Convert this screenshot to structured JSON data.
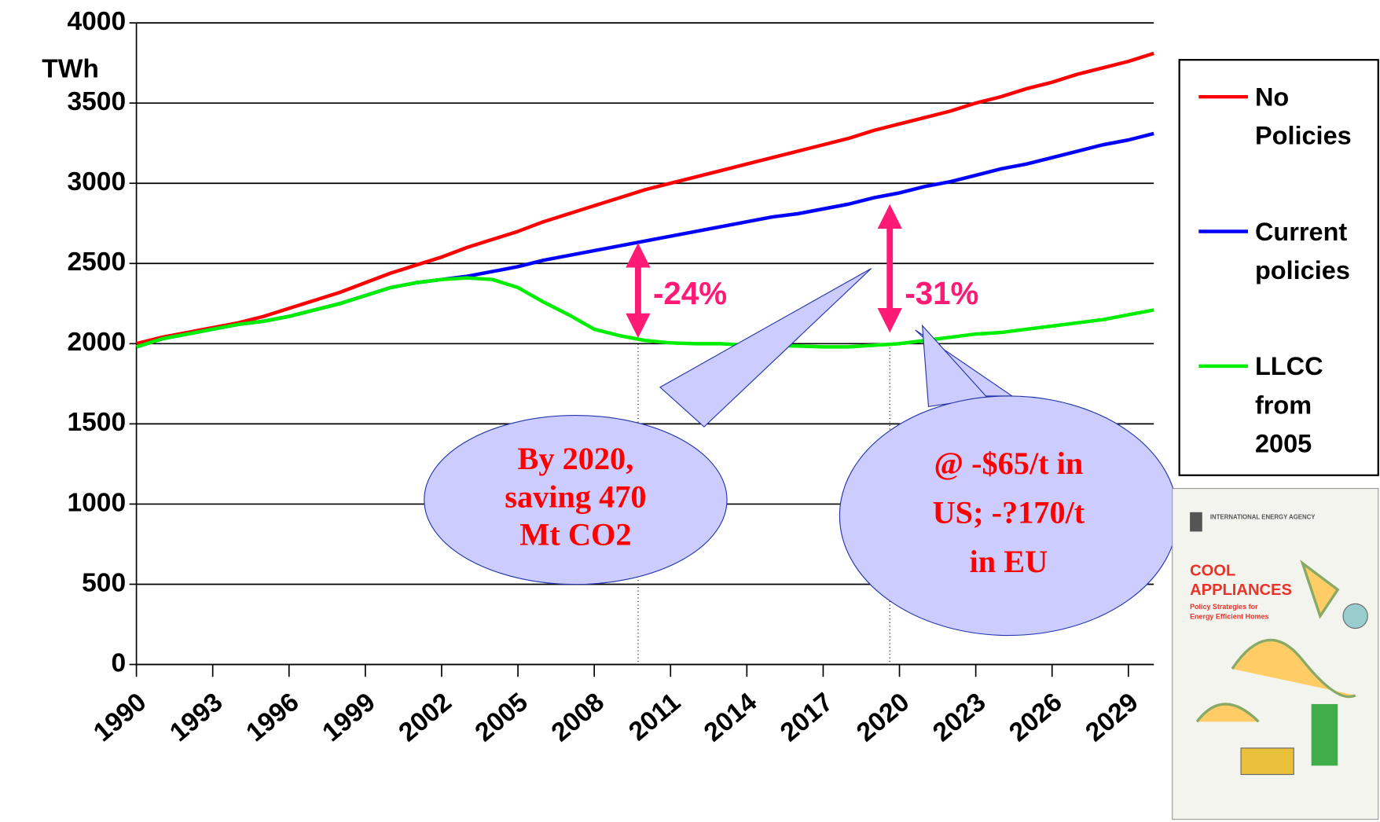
{
  "chart_data": {
    "type": "line",
    "y_unit": "TWh",
    "x": [
      1990,
      1991,
      1992,
      1993,
      1994,
      1995,
      1996,
      1997,
      1998,
      1999,
      2000,
      2001,
      2002,
      2003,
      2004,
      2005,
      2006,
      2007,
      2008,
      2009,
      2010,
      2011,
      2012,
      2013,
      2014,
      2015,
      2016,
      2017,
      2018,
      2019,
      2020,
      2021,
      2022,
      2023,
      2024,
      2025,
      2026,
      2027,
      2028,
      2029,
      2030
    ],
    "series": [
      {
        "name": "No Policies",
        "color": "#ff0000",
        "values": [
          2000,
          2040,
          2070,
          2100,
          2130,
          2170,
          2220,
          2270,
          2320,
          2380,
          2440,
          2490,
          2540,
          2600,
          2650,
          2700,
          2760,
          2810,
          2860,
          2910,
          2960,
          3000,
          3040,
          3080,
          3120,
          3160,
          3200,
          3240,
          3280,
          3330,
          3370,
          3410,
          3450,
          3500,
          3540,
          3590,
          3630,
          3680,
          3720,
          3760,
          3810
        ]
      },
      {
        "name": "Current policies",
        "color": "#0000ff",
        "values": [
          1980,
          2030,
          2060,
          2090,
          2120,
          2140,
          2170,
          2210,
          2250,
          2300,
          2350,
          2380,
          2400,
          2420,
          2450,
          2480,
          2520,
          2550,
          2580,
          2610,
          2640,
          2670,
          2700,
          2730,
          2760,
          2790,
          2810,
          2840,
          2870,
          2910,
          2940,
          2980,
          3010,
          3050,
          3090,
          3120,
          3160,
          3200,
          3240,
          3270,
          3310
        ]
      },
      {
        "name": "LLCC from 2005",
        "color": "#00ee00",
        "values": [
          1980,
          2030,
          2060,
          2090,
          2120,
          2140,
          2170,
          2210,
          2250,
          2300,
          2350,
          2380,
          2400,
          2410,
          2400,
          2350,
          2260,
          2180,
          2090,
          2050,
          2020,
          2005,
          2000,
          2000,
          1990,
          1990,
          1985,
          1980,
          1980,
          1990,
          2000,
          2020,
          2040,
          2060,
          2070,
          2090,
          2110,
          2130,
          2150,
          2180,
          2210
        ]
      }
    ],
    "xlim": [
      1990,
      2030
    ],
    "xticks": [
      1990,
      1993,
      1996,
      1999,
      2002,
      2005,
      2008,
      2011,
      2014,
      2017,
      2020,
      2023,
      2026,
      2029
    ],
    "ylim": [
      0,
      4000
    ],
    "yticks": [
      0,
      500,
      1000,
      1500,
      2000,
      2500,
      3000,
      3500,
      4000
    ],
    "grid": true,
    "annotations": [
      {
        "text": "-24%"
      },
      {
        "text": "-31%"
      },
      {
        "lines": [
          "By 2020,",
          "saving 470",
          "Mt CO2"
        ]
      },
      {
        "lines": [
          "@ -$65/t in",
          "US; -?170/t",
          "in EU"
        ]
      }
    ]
  },
  "cover": {
    "publisher": "INTERNATIONAL ENERGY AGENCY",
    "title_lines": [
      "COOL",
      "APPLIANCES"
    ],
    "subtitle_lines": [
      "Policy Strategies for",
      "Energy Efficient Homes"
    ]
  }
}
